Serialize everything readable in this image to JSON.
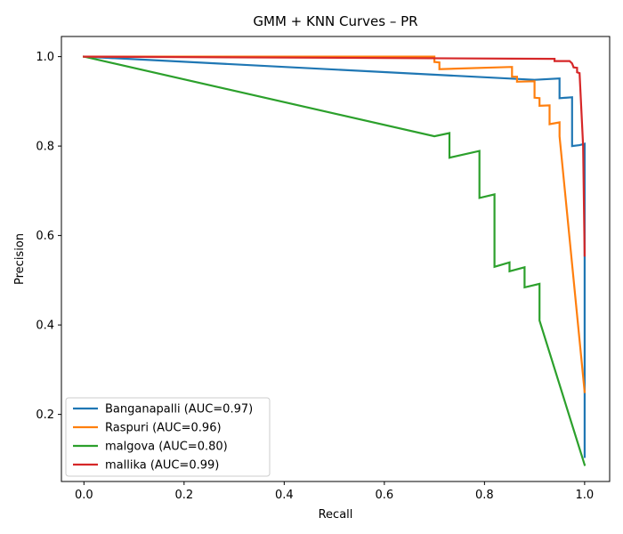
{
  "chart_data": {
    "type": "line",
    "title": "GMM + KNN Curves – PR",
    "xlabel": "Recall",
    "ylabel": "Precision",
    "xlim": [
      -0.045,
      1.05
    ],
    "ylim": [
      0.05,
      1.045
    ],
    "xticks": [
      "0.0",
      "0.2",
      "0.4",
      "0.6",
      "0.8",
      "1.0"
    ],
    "yticks": [
      "0.2",
      "0.4",
      "0.6",
      "0.8",
      "1.0"
    ],
    "grid": false,
    "legend_position": "lower-left",
    "series": [
      {
        "name": "Banganapalli (AUC=0.97)",
        "color": "#1f77b4",
        "points": [
          [
            0.0,
            1.0
          ],
          [
            0.9,
            0.948
          ],
          [
            0.95,
            0.951
          ],
          [
            0.95,
            0.907
          ],
          [
            0.975,
            0.909
          ],
          [
            0.975,
            0.8
          ],
          [
            0.99,
            0.802
          ],
          [
            1.0,
            0.805
          ],
          [
            1.0,
            0.105
          ]
        ]
      },
      {
        "name": "Raspuri (AUC=0.96)",
        "color": "#ff7f0e",
        "points": [
          [
            0.0,
            1.0
          ],
          [
            0.7,
            1.0
          ],
          [
            0.7,
            0.988
          ],
          [
            0.71,
            0.987
          ],
          [
            0.71,
            0.972
          ],
          [
            0.855,
            0.977
          ],
          [
            0.855,
            0.955
          ],
          [
            0.865,
            0.955
          ],
          [
            0.865,
            0.944
          ],
          [
            0.9,
            0.945
          ],
          [
            0.9,
            0.908
          ],
          [
            0.91,
            0.907
          ],
          [
            0.91,
            0.89
          ],
          [
            0.93,
            0.891
          ],
          [
            0.93,
            0.849
          ],
          [
            0.95,
            0.853
          ],
          [
            0.95,
            0.822
          ],
          [
            1.0,
            0.25
          ]
        ]
      },
      {
        "name": "malgova (AUC=0.80)",
        "color": "#2ca02c",
        "points": [
          [
            0.0,
            1.0
          ],
          [
            0.7,
            0.822
          ],
          [
            0.73,
            0.829
          ],
          [
            0.73,
            0.774
          ],
          [
            0.79,
            0.789
          ],
          [
            0.79,
            0.684
          ],
          [
            0.82,
            0.692
          ],
          [
            0.82,
            0.53
          ],
          [
            0.85,
            0.54
          ],
          [
            0.85,
            0.52
          ],
          [
            0.88,
            0.529
          ],
          [
            0.88,
            0.484
          ],
          [
            0.91,
            0.492
          ],
          [
            0.91,
            0.41
          ],
          [
            1.0,
            0.087
          ]
        ]
      },
      {
        "name": "mallika (AUC=0.99)",
        "color": "#d62728",
        "points": [
          [
            0.0,
            1.0
          ],
          [
            0.94,
            0.995
          ],
          [
            0.94,
            0.99
          ],
          [
            0.97,
            0.99
          ],
          [
            0.975,
            0.985
          ],
          [
            0.978,
            0.976
          ],
          [
            0.985,
            0.975
          ],
          [
            0.985,
            0.965
          ],
          [
            0.99,
            0.963
          ],
          [
            0.997,
            0.8
          ],
          [
            1.0,
            0.555
          ]
        ]
      }
    ]
  }
}
